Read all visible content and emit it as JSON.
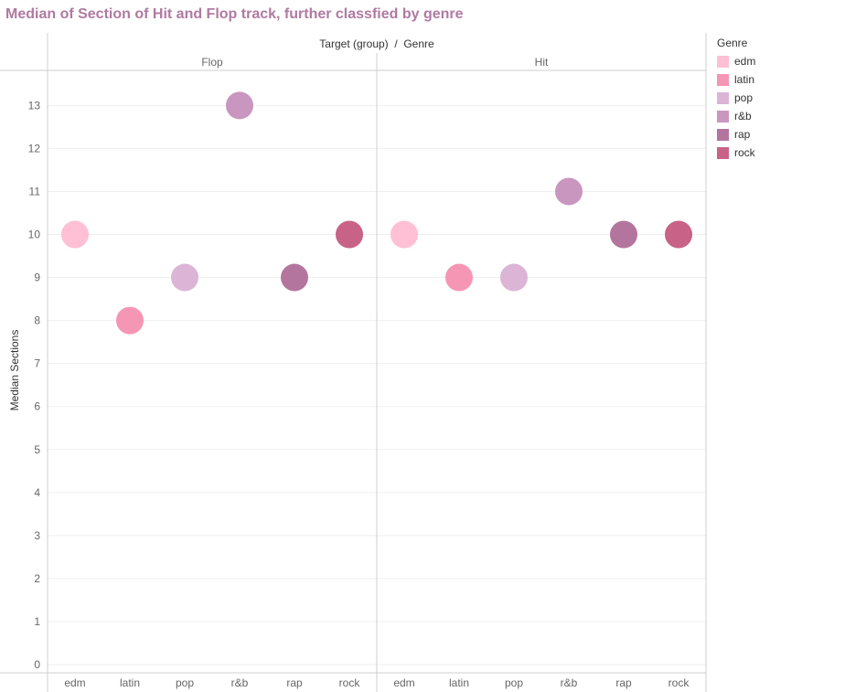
{
  "title": "Median of Section of Hit and Flop track, further classfied by genre",
  "legend": {
    "title": "Genre",
    "items": [
      {
        "label": "edm",
        "color": "#ffbfd4"
      },
      {
        "label": "latin",
        "color": "#f596b4"
      },
      {
        "label": "pop",
        "color": "#dbb4d6"
      },
      {
        "label": "r&b",
        "color": "#c996c0"
      },
      {
        "label": "rap",
        "color": "#b3759e"
      },
      {
        "label": "rock",
        "color": "#c86286"
      }
    ]
  },
  "chart_data": {
    "type": "scatter",
    "title": "Median of Section of Hit and Flop track, further classfied by genre",
    "column_header": "Target (group)  /  Genre",
    "panels": [
      "Flop",
      "Hit"
    ],
    "categories": [
      "edm",
      "latin",
      "pop",
      "r&b",
      "rap",
      "rock"
    ],
    "ylabel": "Median Sections",
    "ylim": [
      0,
      13.9
    ],
    "yticks": [
      0,
      1,
      2,
      3,
      4,
      5,
      6,
      7,
      8,
      9,
      10,
      11,
      12,
      13
    ],
    "grid": true,
    "legend_position": "right",
    "series": [
      {
        "panel": "Flop",
        "values": [
          10,
          8,
          9,
          13,
          9,
          10
        ]
      },
      {
        "panel": "Hit",
        "values": [
          10,
          9,
          9,
          11,
          10,
          10
        ]
      }
    ]
  }
}
